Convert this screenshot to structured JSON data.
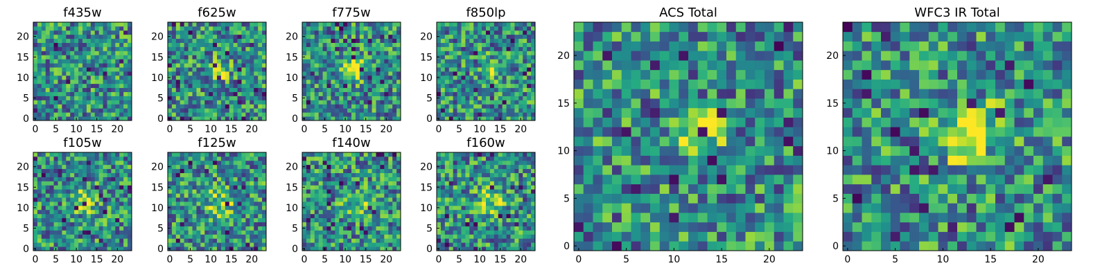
{
  "chart_data": [
    {
      "type": "heatmap",
      "title": "f435w",
      "grid_size": 24,
      "xticks": [
        "0",
        "5",
        "10",
        "15",
        "20"
      ],
      "yticks": [
        "0",
        "5",
        "10",
        "15",
        "20"
      ],
      "xlim": [
        0,
        24
      ],
      "ylim": [
        0,
        24
      ],
      "colormap": "viridis",
      "blob": null,
      "seed": 11
    },
    {
      "type": "heatmap",
      "title": "f625w",
      "grid_size": 24,
      "xticks": [
        "0",
        "5",
        "10",
        "15",
        "20"
      ],
      "yticks": [
        "0",
        "5",
        "10",
        "15",
        "20"
      ],
      "xlim": [
        0,
        24
      ],
      "ylim": [
        0,
        24
      ],
      "colormap": "viridis",
      "blob": {
        "x": 12,
        "y": 12,
        "sigma": 1.6,
        "amp": 0.45
      },
      "seed": 22
    },
    {
      "type": "heatmap",
      "title": "f775w",
      "grid_size": 24,
      "xticks": [
        "0",
        "5",
        "10",
        "15",
        "20"
      ],
      "yticks": [
        "0",
        "5",
        "10",
        "15",
        "20"
      ],
      "xlim": [
        0,
        24
      ],
      "ylim": [
        0,
        24
      ],
      "colormap": "viridis",
      "blob": {
        "x": 12.5,
        "y": 12,
        "sigma": 1.8,
        "amp": 0.5
      },
      "seed": 33
    },
    {
      "type": "heatmap",
      "title": "f850lp",
      "grid_size": 24,
      "xticks": [
        "0",
        "5",
        "10",
        "15",
        "20"
      ],
      "yticks": [
        "0",
        "5",
        "10",
        "15",
        "20"
      ],
      "xlim": [
        0,
        24
      ],
      "ylim": [
        0,
        24
      ],
      "colormap": "viridis",
      "blob": {
        "x": 13,
        "y": 12,
        "sigma": 1.8,
        "amp": 0.35
      },
      "seed": 44
    },
    {
      "type": "heatmap",
      "title": "f105w",
      "grid_size": 24,
      "xticks": [
        "0",
        "5",
        "10",
        "15",
        "20"
      ],
      "yticks": [
        "0",
        "5",
        "10",
        "15",
        "20"
      ],
      "xlim": [
        0,
        24
      ],
      "ylim": [
        0,
        24
      ],
      "colormap": "viridis",
      "blob": {
        "x": 12,
        "y": 12,
        "sigma": 2.2,
        "amp": 0.35
      },
      "seed": 55
    },
    {
      "type": "heatmap",
      "title": "f125w",
      "grid_size": 24,
      "xticks": [
        "0",
        "5",
        "10",
        "15",
        "20"
      ],
      "yticks": [
        "0",
        "5",
        "10",
        "15",
        "20"
      ],
      "xlim": [
        0,
        24
      ],
      "ylim": [
        0,
        24
      ],
      "colormap": "viridis",
      "blob": {
        "x": 12,
        "y": 11,
        "sigma": 2.5,
        "amp": 0.35
      },
      "seed": 66
    },
    {
      "type": "heatmap",
      "title": "f140w",
      "grid_size": 24,
      "xticks": [
        "0",
        "5",
        "10",
        "15",
        "20"
      ],
      "yticks": [
        "0",
        "5",
        "10",
        "15",
        "20"
      ],
      "xlim": [
        0,
        24
      ],
      "ylim": [
        0,
        24
      ],
      "colormap": "viridis",
      "blob": {
        "x": 13,
        "y": 11,
        "sigma": 2.2,
        "amp": 0.3
      },
      "seed": 77
    },
    {
      "type": "heatmap",
      "title": "f160w",
      "grid_size": 24,
      "xticks": [
        "0",
        "5",
        "10",
        "15",
        "20"
      ],
      "yticks": [
        "0",
        "5",
        "10",
        "15",
        "20"
      ],
      "xlim": [
        0,
        24
      ],
      "ylim": [
        0,
        24
      ],
      "colormap": "viridis",
      "blob": {
        "x": 13,
        "y": 12,
        "sigma": 2.2,
        "amp": 0.35
      },
      "seed": 88
    },
    {
      "type": "heatmap",
      "title": "ACS Total",
      "grid_size": 24,
      "xticks": [
        "0",
        "5",
        "10",
        "15",
        "20"
      ],
      "yticks": [
        "0",
        "5",
        "10",
        "15",
        "20"
      ],
      "xlim": [
        0,
        24
      ],
      "ylim": [
        0,
        24
      ],
      "colormap": "viridis",
      "blob": {
        "x": 12.5,
        "y": 12,
        "sigma": 1.6,
        "amp": 0.6
      },
      "seed": 99
    },
    {
      "type": "heatmap",
      "title": "WFC3 IR Total",
      "grid_size": 24,
      "xticks": [
        "0",
        "5",
        "10",
        "15",
        "20"
      ],
      "yticks": [
        "0",
        "5",
        "10",
        "15",
        "20"
      ],
      "xlim": [
        0,
        24
      ],
      "ylim": [
        0,
        24
      ],
      "colormap": "viridis",
      "blob": {
        "x": 12.5,
        "y": 12,
        "sigma": 2.2,
        "amp": 0.5
      },
      "seed": 111
    }
  ]
}
